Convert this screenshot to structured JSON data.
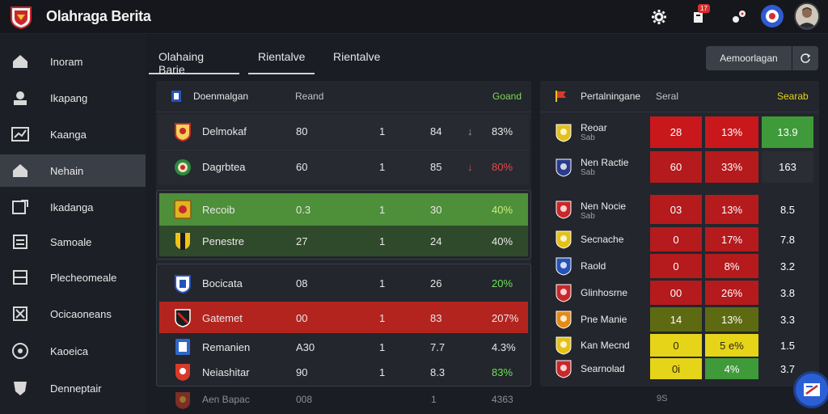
{
  "app": {
    "title": "Olahraga Berita"
  },
  "topbar": {
    "notif_count": "17"
  },
  "sidebar": {
    "items": [
      {
        "label": "Inoram",
        "icon": "home-icon"
      },
      {
        "label": "Ikapang",
        "icon": "user-icon"
      },
      {
        "label": "Kaanga",
        "icon": "chart-icon"
      },
      {
        "label": "Nehain",
        "icon": "home-icon",
        "active": true
      },
      {
        "label": "Ikadanga",
        "icon": "edit-icon"
      },
      {
        "label": "Samoale",
        "icon": "document-icon"
      },
      {
        "label": "Plecheomeale",
        "icon": "list-icon"
      },
      {
        "label": "Ocicaoneans",
        "icon": "close-box-icon"
      },
      {
        "label": "Kaoeica",
        "icon": "ball-icon"
      },
      {
        "label": "Denneptair",
        "icon": "shield-icon"
      }
    ]
  },
  "tabs": [
    {
      "label": "Olahaing Barie",
      "active": true
    },
    {
      "label": "Rientalve"
    },
    {
      "label": "Rientalve"
    }
  ],
  "actions": {
    "primary_label": "Aemoorlagan"
  },
  "left_table": {
    "header": {
      "title": "Doenmalgan",
      "col1": "Reand",
      "col2": "Goand"
    },
    "rows": [
      {
        "team": "Delmokaf",
        "a": "80",
        "b": "1",
        "c": "84",
        "trend": "↓",
        "pct": "83%",
        "highlight": "none",
        "pct_color": "#e8e8e8",
        "crest": "#c8282b"
      },
      {
        "team": "Dagrbtea",
        "a": "60",
        "b": "1",
        "c": "85",
        "trend": "↓",
        "pct": "80%",
        "highlight": "none",
        "pct_color": "#e34848",
        "crest": "#2d8a3e"
      },
      {
        "team": "Recoib",
        "a": "0.3",
        "b": "1",
        "c": "30",
        "trend": "",
        "pct": "40%",
        "highlight": "green",
        "pct_color": "#c8f07a",
        "crest": "#e0b422"
      },
      {
        "team": "Penestre",
        "a": "27",
        "b": "1",
        "c": "24",
        "trend": "",
        "pct": "40%",
        "highlight": "dkgreen",
        "pct_color": "#e8e8e8",
        "crest": "#f0c318"
      },
      {
        "team": "Bocicata",
        "a": "08",
        "b": "1",
        "c": "26",
        "trend": "",
        "pct": "20%",
        "highlight": "none",
        "pct_color": "#6ee05a",
        "crest": "#2553b8"
      },
      {
        "team": "Gatemet",
        "a": "00",
        "b": "1",
        "c": "83",
        "trend": "",
        "pct": "207%",
        "highlight": "red",
        "pct_color": "#e8e8e8",
        "crest": "#c8282b"
      },
      {
        "team": "Remanien",
        "a": "A30",
        "b": "1",
        "c": "7.7",
        "trend": "",
        "pct": "4.3%",
        "highlight": "none",
        "pct_color": "#e8e8e8",
        "crest": "#3067c8"
      },
      {
        "team": "Neiashitar",
        "a": "90",
        "b": "1",
        "c": "8.3",
        "trend": "",
        "pct": "83%",
        "highlight": "none",
        "pct_color": "#6ee05a",
        "crest": "#d83a2a"
      },
      {
        "team": "Aen Bapac",
        "a": "008",
        "b": "1",
        "c": "",
        "trend": "",
        "pct": "4363",
        "highlight": "none",
        "pct_color": "#9aa0a8",
        "crest": "#d03b2b"
      }
    ]
  },
  "right_table": {
    "header": {
      "title": "Pertalningane",
      "col1": "Seral",
      "col2": "Searab"
    },
    "rows": [
      {
        "name": "Reoar",
        "sub": "Sab",
        "v1": "28",
        "v2": "13%",
        "v3": "13.9",
        "c1": "#c8181c",
        "c2": "#c8181c",
        "c3": "#3f9a3a",
        "crest": "#e4c119"
      },
      {
        "name": "Nen Ractie",
        "sub": "Sab",
        "v1": "60",
        "v2": "33%",
        "v3": "163",
        "c1": "#b51a1d",
        "c2": "#b51a1d",
        "c3": "#2a2d34",
        "crest": "#2a3b8c"
      },
      {
        "name": "Nen Nocie",
        "sub": "Sab",
        "v1": "03",
        "v2": "13%",
        "v3": "8.5",
        "c1": "#b51a1d",
        "c2": "#b51a1d",
        "c3": "#23262d",
        "crest": "#c8282b"
      },
      {
        "name": "Secnache",
        "sub": "",
        "v1": "0",
        "v2": "17%",
        "v3": "7.8",
        "c1": "#b51a1d",
        "c2": "#b51a1d",
        "c3": "#23262d",
        "crest": "#e4c119"
      },
      {
        "name": "Raold",
        "sub": "",
        "v1": "0",
        "v2": "8%",
        "v3": "3.2",
        "c1": "#b51a1d",
        "c2": "#b51a1d",
        "c3": "#23262d",
        "crest": "#2553b8"
      },
      {
        "name": "Glinhosrne",
        "sub": "",
        "v1": "00",
        "v2": "26%",
        "v3": "3.8",
        "c1": "#b51a1d",
        "c2": "#b51a1d",
        "c3": "#23262d",
        "crest": "#c8282b"
      },
      {
        "name": "Pne Manie",
        "sub": "",
        "v1": "14",
        "v2": "13%",
        "v3": "3.3",
        "c1": "#5e6a12",
        "c2": "#5e6a12",
        "c3": "#23262d",
        "crest": "#e38a18"
      },
      {
        "name": "Kan Mecnd",
        "sub": "",
        "v1": "0",
        "v2": "5 e%",
        "v3": "1.5",
        "c1": "#e6d418",
        "c2": "#e6d418",
        "c3": "#23262d",
        "crest": "#e4c119"
      },
      {
        "name": "Searnolad",
        "sub": "",
        "v1": "0i",
        "v2": "4%",
        "v3": "3.7",
        "c1": "#e6d418",
        "c2": "#3f9a3a",
        "c3": "#23262d",
        "crest": "#c8282b"
      }
    ]
  },
  "footer": {
    "extra": "9S"
  }
}
